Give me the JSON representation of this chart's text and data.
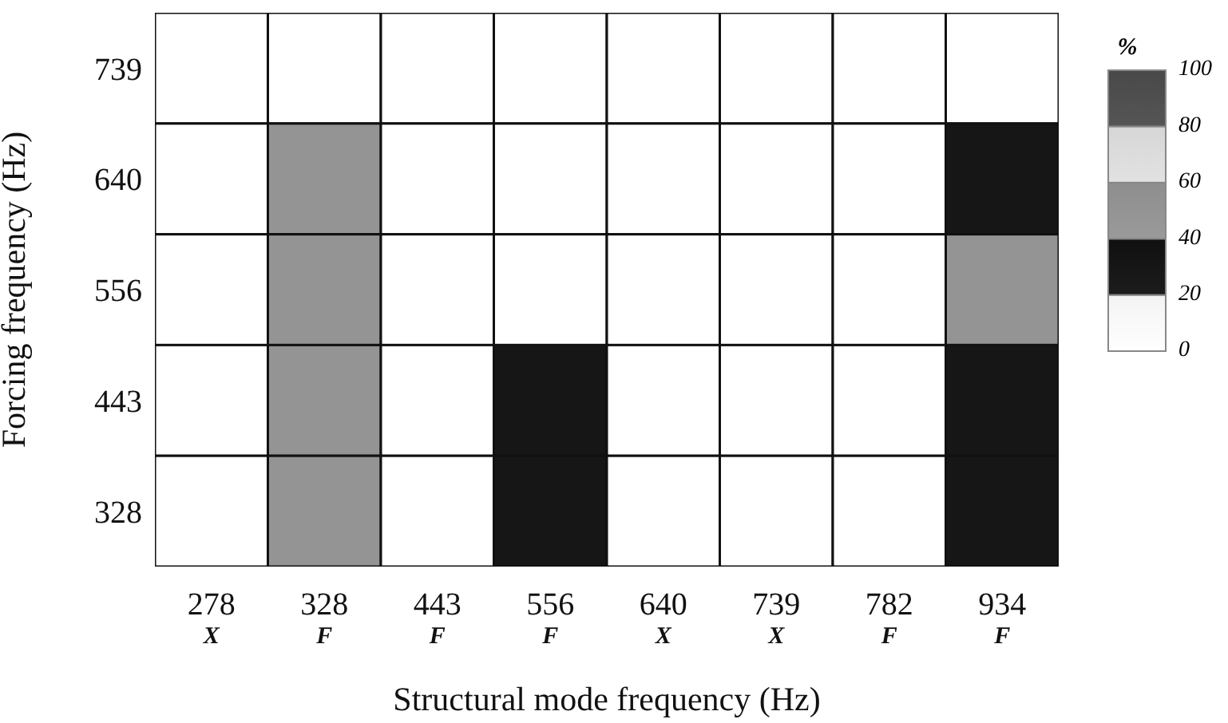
{
  "chart_data": {
    "type": "heatmap",
    "xlabel": "Structural mode frequency (Hz)",
    "ylabel": "Forcing frequency (Hz)",
    "clabel": "%",
    "categories": [
      "278\nX",
      "328\nF",
      "443\nF",
      "556\nF",
      "640\nX",
      "739\nX",
      "782\nF",
      "934\nF"
    ],
    "y_categories": [
      "739",
      "640",
      "556",
      "443",
      "328"
    ],
    "cells": [
      [
        0,
        0,
        0,
        0,
        0,
        0,
        0,
        0
      ],
      [
        0,
        50,
        0,
        0,
        0,
        0,
        0,
        30
      ],
      [
        0,
        50,
        0,
        0,
        0,
        0,
        0,
        50
      ],
      [
        0,
        50,
        0,
        30,
        0,
        0,
        0,
        30
      ],
      [
        0,
        50,
        0,
        30,
        0,
        0,
        0,
        30
      ]
    ],
    "clim": [
      0,
      100
    ],
    "cticks": [
      0,
      20,
      40,
      60,
      80,
      100
    ]
  }
}
